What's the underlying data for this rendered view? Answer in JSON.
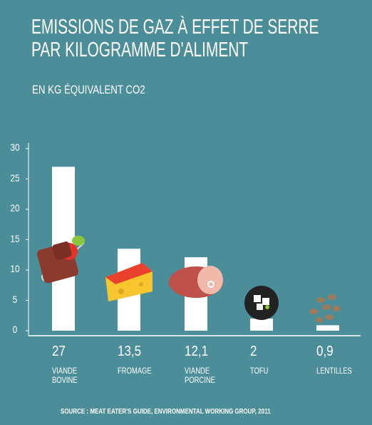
{
  "chart_data": {
    "type": "bar",
    "title": "EMISSIONS DE GAZ À EFFET DE SERRE\nPAR KILOGRAMME D'ALIMENT",
    "subtitle": "EN KG ÉQUIVALENT CO2",
    "categories": [
      "VIANDE\nBOVINE",
      "FROMAGE",
      "VIANDE\nPORCINE",
      "TOFU",
      "LENTILLES"
    ],
    "values": [
      27,
      13.5,
      12.1,
      2,
      0.9
    ],
    "value_labels": [
      "27",
      "13,5",
      "12,1",
      "2",
      "0,9"
    ],
    "color": "#ffffff",
    "ylim": [
      0,
      30
    ],
    "yticks": [
      0,
      5,
      10,
      15,
      20,
      25,
      30
    ],
    "source": "SOURCE : MEAT EATER'S GUIDE, ENVIRONMENTAL WORKING GROUP, 2011"
  }
}
